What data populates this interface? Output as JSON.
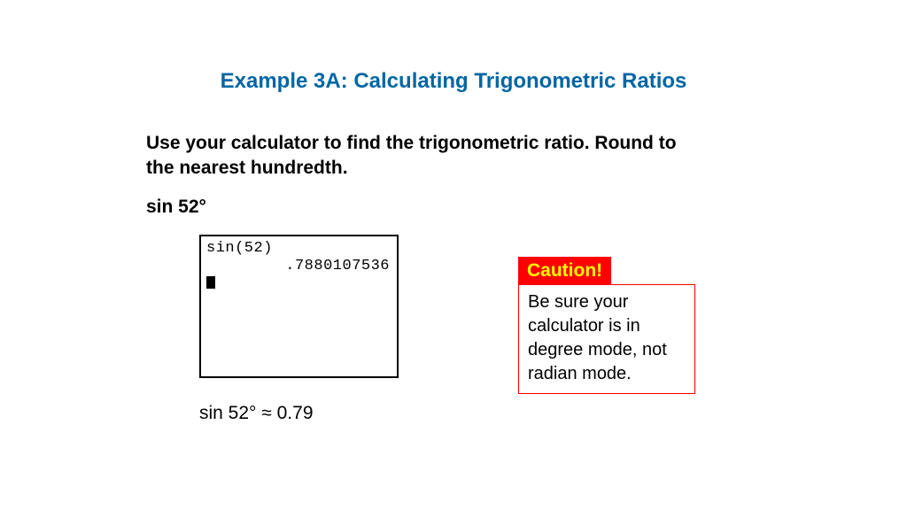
{
  "title": "Example 3A: Calculating Trigonometric Ratios",
  "instruction": "Use your calculator to find the trigonometric ratio. Round to the nearest hundredth.",
  "problem": "sin 52°",
  "calc": {
    "line1": "sin(52)",
    "line2": ".7880107536"
  },
  "caution": {
    "header": "Caution!",
    "body": "Be sure your calculator is in degree mode, not radian mode."
  },
  "answer": "sin 52° ≈ 0.79",
  "colors": {
    "title": "#0066a4",
    "caution_bg": "#ff0000",
    "caution_text": "#ffff00",
    "caution_border": "#ff0000"
  }
}
